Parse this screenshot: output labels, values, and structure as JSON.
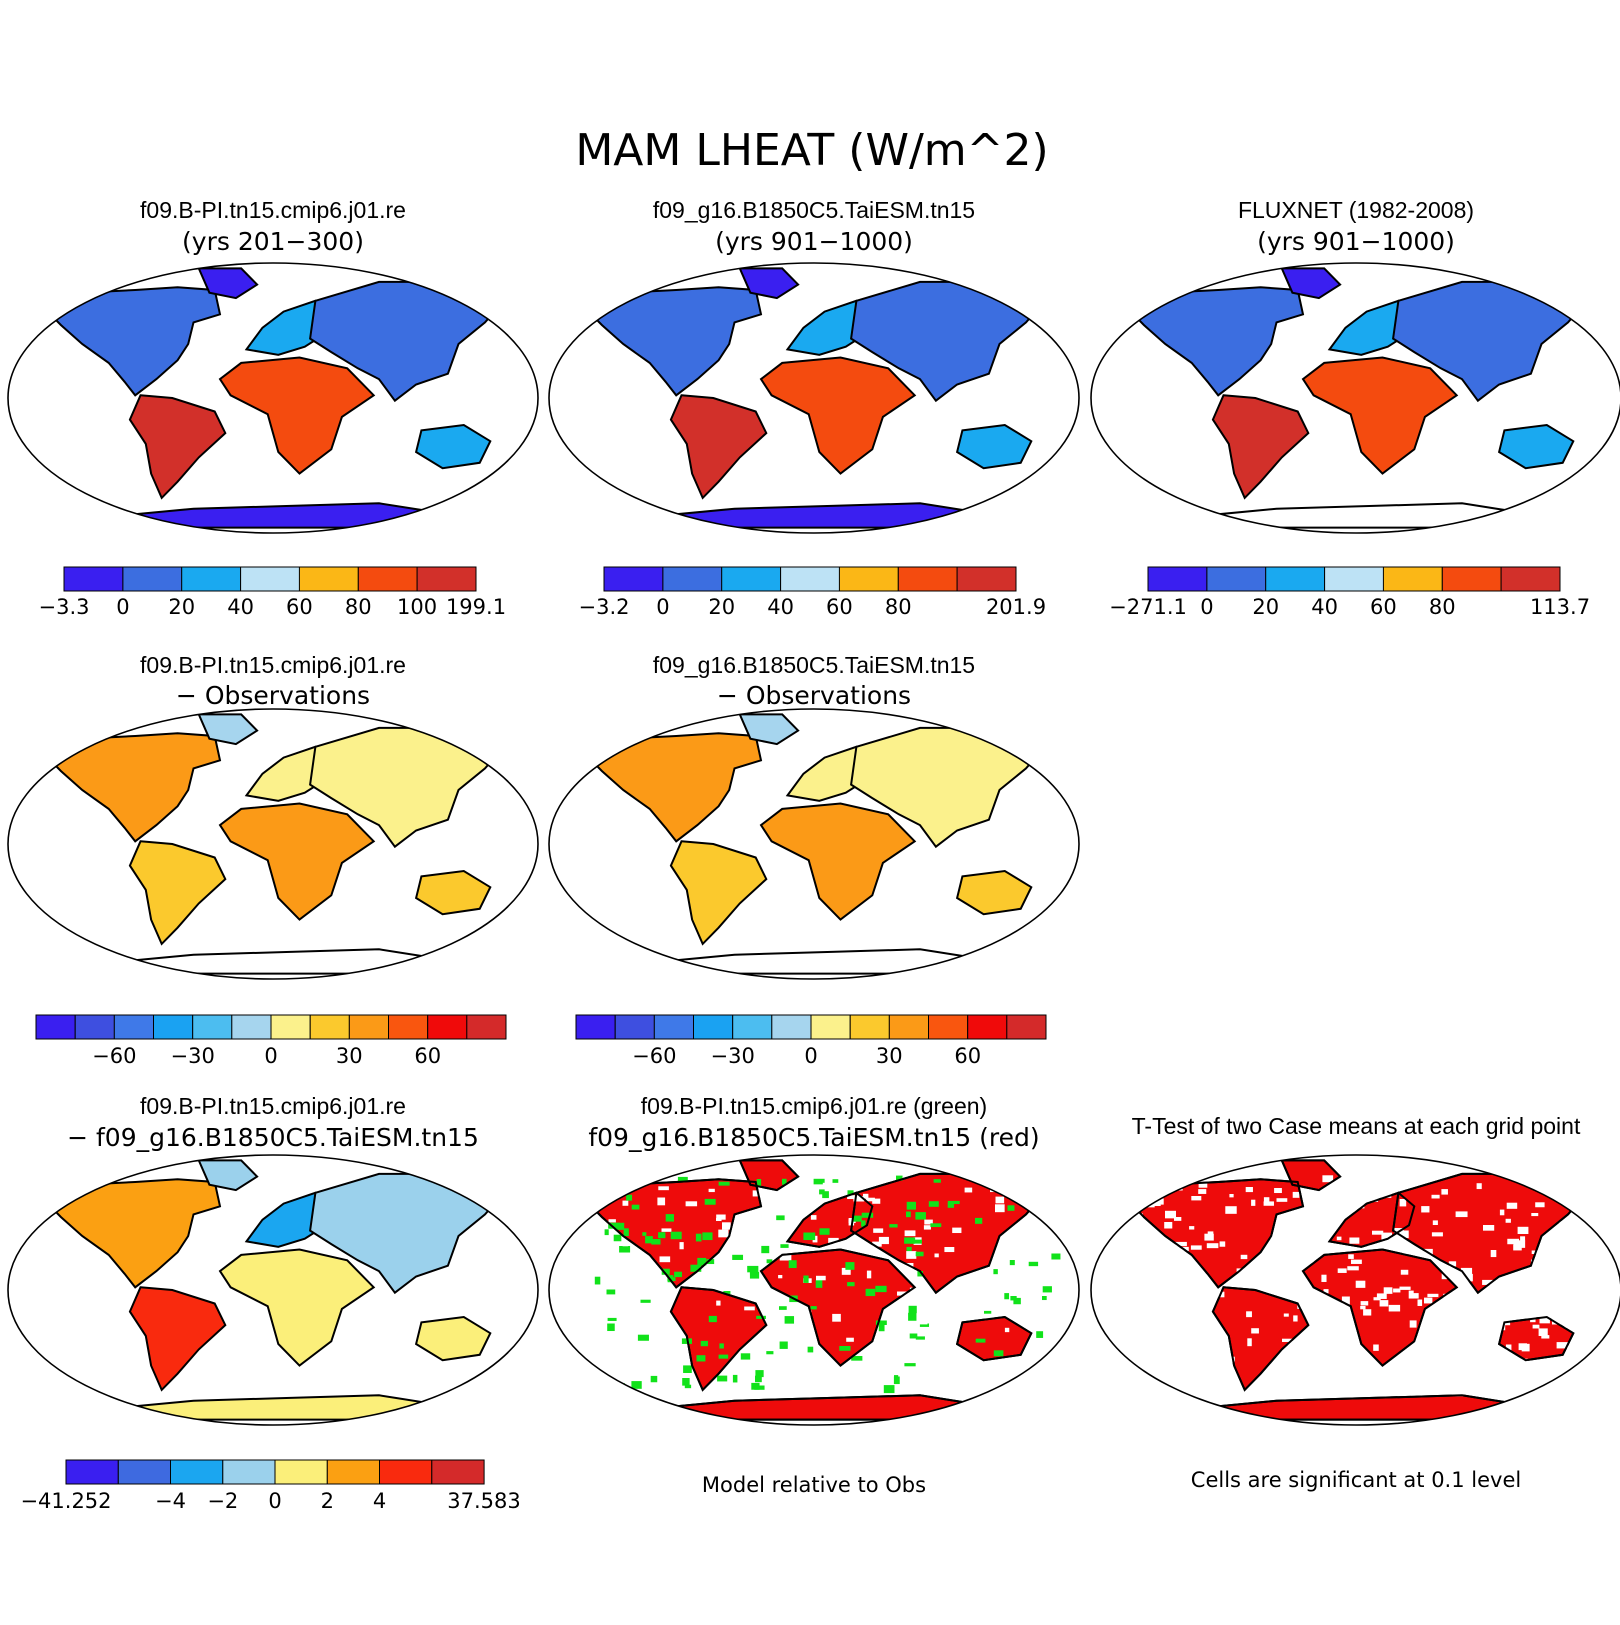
{
  "title": "MAM LHEAT (W/m^2)",
  "colors": {
    "abs": [
      "#3a1ff0",
      "#3c6ee0",
      "#1aa9f0",
      "#bde2f5",
      "#fbb716",
      "#f44b0f",
      "#d2302a"
    ],
    "diff": [
      "#3a1ff0",
      "#3e4fe0",
      "#3f79e8",
      "#1aa2f2",
      "#4cbdf0",
      "#a6d5ee",
      "#fbf18c",
      "#fbc92d",
      "#fb9a17",
      "#f9560f",
      "#f00a0a",
      "#d42a2a"
    ],
    "casediff": [
      "#3a1ff0",
      "#3e6ae0",
      "#1ba6f0",
      "#9bd1ec",
      "#fbef7a",
      "#fba012",
      "#f92a0e",
      "#d42a2a"
    ],
    "green": "#11e21a",
    "red": "#ee0b0b",
    "outline": "#000000"
  },
  "panels": [
    {
      "id": "case1",
      "line1": "f09.B-PI.tn15.cmip6.j01.re",
      "line2": "(yrs 201−300)",
      "fill": "abs",
      "antarctica": true,
      "colorbar": {
        "ticks": [
          "−3.3",
          "0",
          "20",
          "40",
          "60",
          "80",
          "100",
          "199.1"
        ]
      }
    },
    {
      "id": "case2",
      "line1": "f09_g16.B1850C5.TaiESM.tn15",
      "line2": "(yrs 901−1000)",
      "fill": "abs",
      "antarctica": true,
      "colorbar": {
        "ticks": [
          "−3.2",
          "0",
          "20",
          "40",
          "60",
          "80",
          "",
          "201.9"
        ]
      }
    },
    {
      "id": "obs",
      "line1": "FLUXNET (1982-2008)",
      "line2": "(yrs 901−1000)",
      "fill": "abs",
      "antarctica": false,
      "colorbar": {
        "ticks": [
          "−271.1",
          "0",
          "20",
          "40",
          "60",
          "80",
          "",
          "113.7"
        ]
      }
    },
    {
      "id": "case1-obs",
      "line1": "f09.B-PI.tn15.cmip6.j01.re",
      "line2": "− Observations",
      "fill": "diff",
      "antarctica": false,
      "colorbar": {
        "ticks": [
          "",
          "",
          "−60",
          "",
          "−30",
          "",
          "0",
          "",
          "30",
          "",
          "60",
          "",
          ""
        ]
      }
    },
    {
      "id": "case2-obs",
      "line1": "f09_g16.B1850C5.TaiESM.tn15",
      "line2": "− Observations",
      "fill": "diff",
      "antarctica": false,
      "colorbar": {
        "ticks": [
          "",
          "",
          "−60",
          "",
          "−30",
          "",
          "0",
          "",
          "30",
          "",
          "60",
          "",
          ""
        ]
      }
    },
    {
      "id": "case1-case2",
      "line1": "f09.B-PI.tn15.cmip6.j01.re",
      "line2": "− f09_g16.B1850C5.TaiESM.tn15",
      "fill": "casediff",
      "antarctica": true,
      "colorbar": {
        "ticks": [
          "−41.252",
          "",
          "−4",
          "−2",
          "0",
          "2",
          "4",
          "",
          "37.583"
        ]
      }
    },
    {
      "id": "relative",
      "line1": "f09.B-PI.tn15.cmip6.j01.re (green)",
      "line2": "f09_g16.B1850C5.TaiESM.tn15 (red)",
      "fill": "relative",
      "antarctica": false,
      "note": "Model relative to Obs"
    },
    {
      "id": "ttest",
      "line1": "T-Test of two Case means at each grid point",
      "line2": "",
      "fill": "ttest",
      "antarctica": true,
      "note": "Cells are significant at 0.1 level"
    }
  ]
}
